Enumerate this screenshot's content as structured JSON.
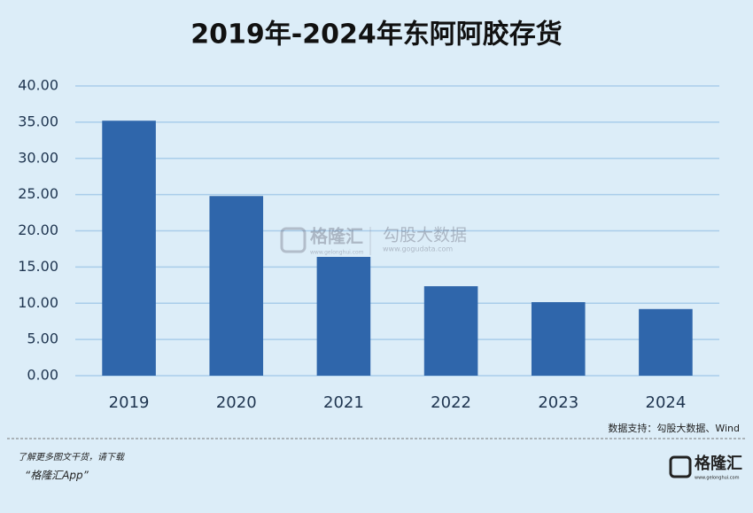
{
  "chart_data": {
    "type": "bar",
    "title": "2019年-2024年东阿阿胶存货",
    "categories": [
      "2019",
      "2020",
      "2021",
      "2022",
      "2023",
      "2024"
    ],
    "values": [
      35.2,
      24.8,
      16.4,
      12.35,
      10.15,
      9.2
    ],
    "color": "#2f66ab",
    "ylim": [
      0,
      40
    ],
    "yticks": [
      {
        "value": 0,
        "label": "0.00"
      },
      {
        "value": 5,
        "label": "5.00"
      },
      {
        "value": 10,
        "label": "10.00"
      },
      {
        "value": 15,
        "label": "15.00"
      },
      {
        "value": 20,
        "label": "20.00"
      },
      {
        "value": 25,
        "label": "25.00"
      },
      {
        "value": 30,
        "label": "30.00"
      },
      {
        "value": 35,
        "label": "35.00"
      },
      {
        "value": 40,
        "label": "40.00"
      }
    ],
    "grid": true,
    "source": "数据支持：勾股大数据、Wind"
  },
  "watermark": {
    "brand": "格隆汇",
    "brand_url": "www.gelonghui.com",
    "partner": "勾股大数据",
    "partner_url": "www.gogudata.com"
  },
  "footer": {
    "line1": "了解更多图文干货，请下载",
    "line2": "“格隆汇App”",
    "logo": "格隆汇",
    "logo_url": "www.gelonghui.com"
  }
}
